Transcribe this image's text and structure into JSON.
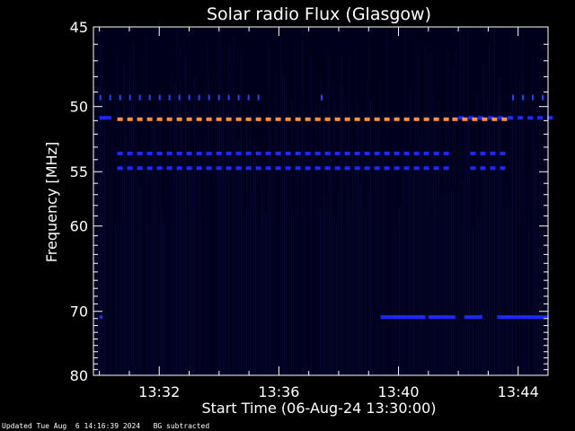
{
  "chart_data": {
    "type": "heatmap",
    "title": "Solar radio Flux (Glasgow)",
    "xlabel": "Start Time (06-Aug-24 13:30:00)",
    "ylabel": "Frequency [MHz]",
    "x_range_minutes_after_1330": [
      -0.2,
      15.0
    ],
    "ylim": [
      45,
      80
    ],
    "x_ticks": [
      "13:32",
      "13:36",
      "13:40",
      "13:44"
    ],
    "y_ticks": [
      45,
      50,
      55,
      60,
      70,
      80
    ],
    "background_color": "#00001a",
    "emission_bands": [
      {
        "freq_mhz": 49.5,
        "start_min": 0.0,
        "end_min": 5.3,
        "color": "#2244ff",
        "pattern": "ticks"
      },
      {
        "freq_mhz": 49.5,
        "start_min": 7.4,
        "end_min": 7.6,
        "color": "#2244ff",
        "pattern": "ticks"
      },
      {
        "freq_mhz": 49.5,
        "start_min": 13.8,
        "end_min": 15.0,
        "color": "#2244ff",
        "pattern": "ticks"
      },
      {
        "freq_mhz": 50.8,
        "start_min": 0.0,
        "end_min": 0.4,
        "color": "#1a2aff",
        "pattern": "solid"
      },
      {
        "freq_mhz": 50.8,
        "start_min": 12.0,
        "end_min": 15.0,
        "color": "#1a2aff",
        "pattern": "dashed"
      },
      {
        "freq_mhz": 50.9,
        "start_min": 0.6,
        "end_min": 11.6,
        "color": "#ff9040",
        "pattern": "dashed"
      },
      {
        "freq_mhz": 50.9,
        "start_min": 11.8,
        "end_min": 13.7,
        "color": "#ff9040",
        "pattern": "dashed"
      },
      {
        "freq_mhz": 53.5,
        "start_min": 0.6,
        "end_min": 11.6,
        "color": "#1a2aff",
        "pattern": "dashed"
      },
      {
        "freq_mhz": 53.5,
        "start_min": 12.4,
        "end_min": 13.7,
        "color": "#1a2aff",
        "pattern": "dashed"
      },
      {
        "freq_mhz": 54.7,
        "start_min": 0.6,
        "end_min": 11.6,
        "color": "#1a2aff",
        "pattern": "dashed"
      },
      {
        "freq_mhz": 54.7,
        "start_min": 12.4,
        "end_min": 13.7,
        "color": "#1a2aff",
        "pattern": "dashed"
      },
      {
        "freq_mhz": 70.8,
        "start_min": 0.0,
        "end_min": 0.1,
        "color": "#1a2aff",
        "pattern": "solid"
      },
      {
        "freq_mhz": 70.8,
        "start_min": 9.4,
        "end_min": 10.9,
        "color": "#1a2aff",
        "pattern": "solid"
      },
      {
        "freq_mhz": 70.8,
        "start_min": 11.0,
        "end_min": 11.9,
        "color": "#1a2aff",
        "pattern": "solid"
      },
      {
        "freq_mhz": 70.8,
        "start_min": 12.2,
        "end_min": 12.8,
        "color": "#1a2aff",
        "pattern": "solid"
      },
      {
        "freq_mhz": 70.8,
        "start_min": 13.3,
        "end_min": 15.0,
        "color": "#1a2aff",
        "pattern": "solid"
      }
    ]
  },
  "footer": {
    "updated": "Updated Tue Aug  6 14:16:39 2024",
    "note": "BG subtracted"
  }
}
